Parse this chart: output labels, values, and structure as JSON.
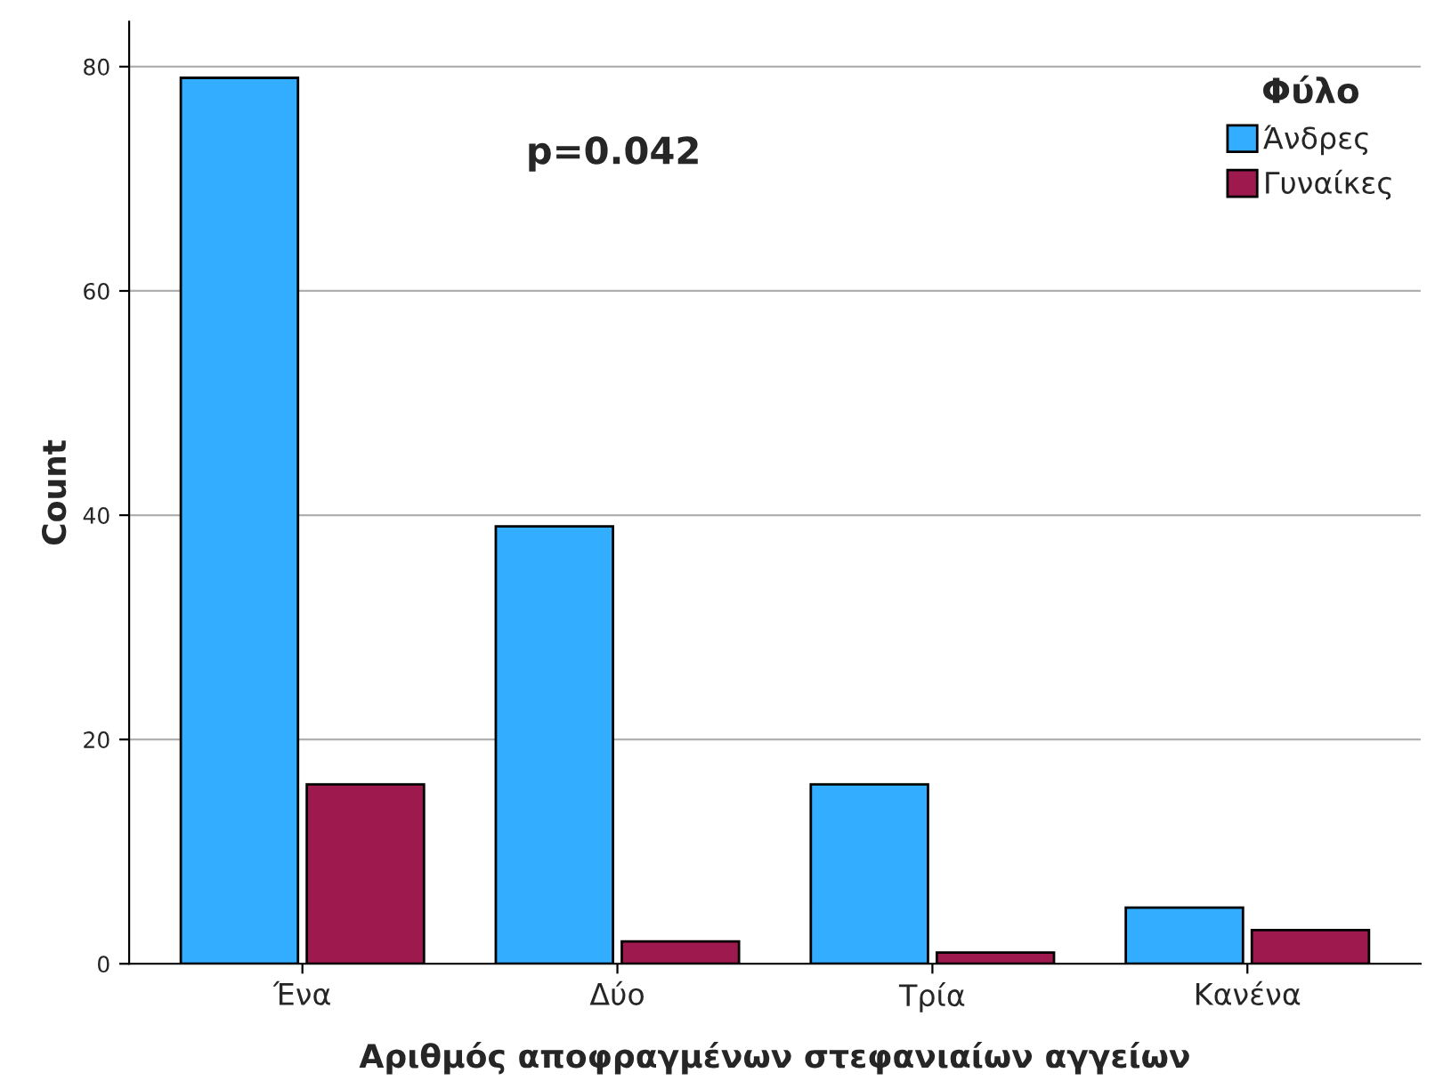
{
  "chart_data": {
    "type": "bar",
    "xlabel": "Αριθμός αποφραγμένων στεφανιαίων αγγείων",
    "ylabel": "Count",
    "categories": [
      "Ένα",
      "Δύο",
      "Τρία",
      "Κανένα"
    ],
    "series": [
      {
        "name": "Άνδρες",
        "color": "#33adff",
        "values": [
          79,
          39,
          16,
          5
        ]
      },
      {
        "name": "Γυναίκες",
        "color": "#9e1a4e",
        "values": [
          16,
          2,
          1,
          3
        ]
      }
    ],
    "legend_title": "Φύλο",
    "legend": "top right",
    "annotations": [
      "p=0.042"
    ],
    "ylim": [
      0,
      84
    ],
    "yticks": [
      0,
      20,
      40,
      60,
      80
    ],
    "grid": "y"
  }
}
